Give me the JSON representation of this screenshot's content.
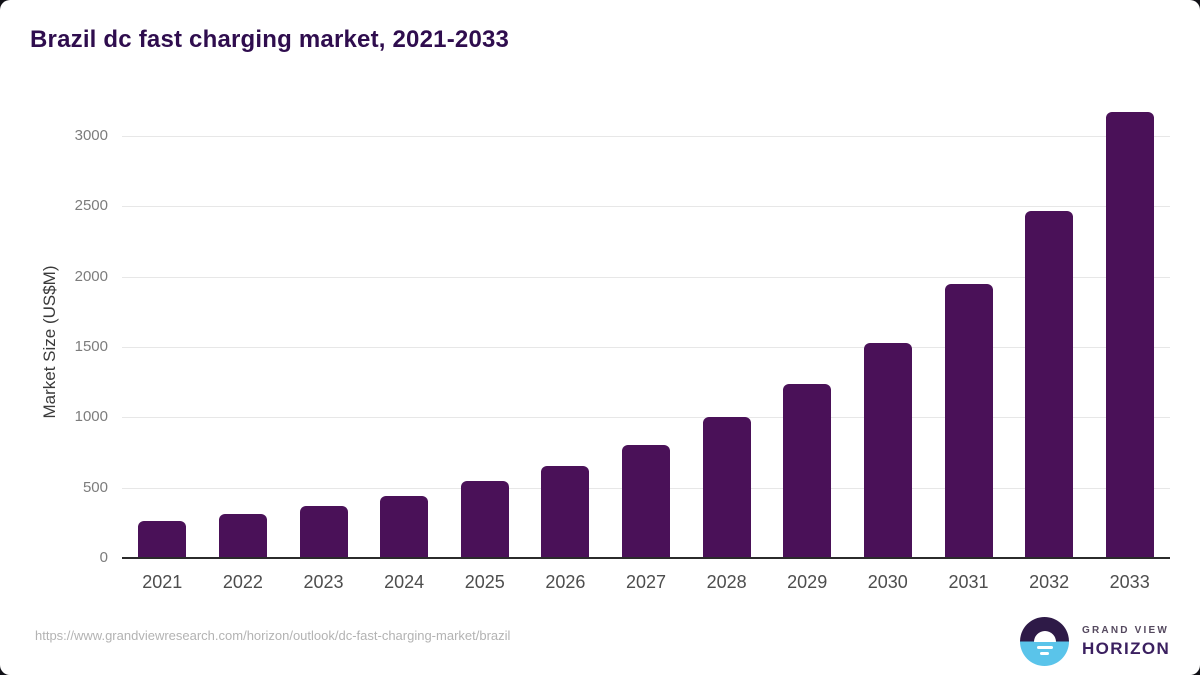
{
  "chart_data": {
    "type": "bar",
    "title": "Brazil dc fast charging market, 2021-2033",
    "categories": [
      "2021",
      "2022",
      "2023",
      "2024",
      "2025",
      "2026",
      "2027",
      "2028",
      "2029",
      "2030",
      "2031",
      "2032",
      "2033"
    ],
    "values": [
      265,
      310,
      370,
      440,
      545,
      655,
      805,
      1000,
      1240,
      1530,
      1950,
      2470,
      3175
    ],
    "xlabel": "",
    "ylabel": "Market Size (US$M)",
    "ylim": [
      0,
      3200
    ],
    "yticks": [
      0,
      500,
      1000,
      1500,
      2000,
      2500,
      3000
    ],
    "legend": "none",
    "grid": true,
    "bar_color": "#4a1158"
  },
  "footer": {
    "source_url": "https://www.grandviewresearch.com/horizon/outlook/dc-fast-charging-market/brazil",
    "logo_line1": "GRAND VIEW",
    "logo_line2": "HORIZON"
  },
  "colors": {
    "title": "#2f0d4e",
    "bar": "#4a1158",
    "gridline": "#e7e7e7",
    "axis_line": "#2b2b2b",
    "y_tick": "#7c7c7c",
    "x_tick": "#4d4d4d",
    "url": "#b3b3b3",
    "logo_blue": "#5ac4ea",
    "logo_purple": "#2e1a47"
  }
}
